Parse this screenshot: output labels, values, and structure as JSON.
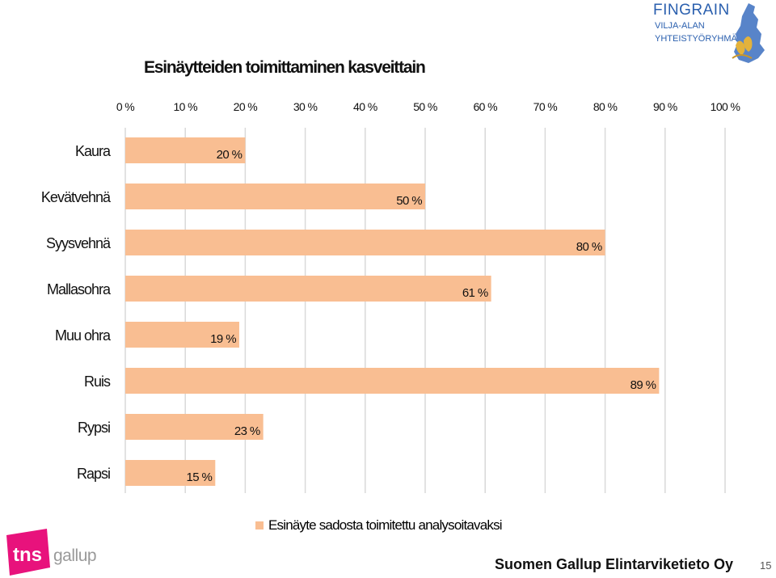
{
  "logo": {
    "brand": "FINGRAIN",
    "sub1": "VILJA-ALAN",
    "sub2": "YHTEISTYÖRYHMÄ"
  },
  "title": "Esinäytteiden toimittaminen kasveittain",
  "chart_data": {
    "type": "bar",
    "orientation": "horizontal",
    "title": "Esinäytteiden toimittaminen kasveittain",
    "categories": [
      "Kaura",
      "Kevätvehnä",
      "Syysvehnä",
      "Mallasohra",
      "Muu ohra",
      "Ruis",
      "Rypsi",
      "Rapsi"
    ],
    "series": [
      {
        "name": "Esinäyte sadosta toimitettu analysoitavaksi",
        "values": [
          20,
          50,
          80,
          61,
          19,
          89,
          23,
          15
        ]
      }
    ],
    "data_labels": [
      "20 %",
      "50 %",
      "80 %",
      "61 %",
      "19 %",
      "89 %",
      "23 %",
      "15 %"
    ],
    "x_ticks": [
      "0 %",
      "10 %",
      "20 %",
      "30 %",
      "40 %",
      "50 %",
      "60 %",
      "70 %",
      "80 %",
      "90 %",
      "100 %"
    ],
    "xlim": [
      0,
      100
    ],
    "x_axis_position": "top",
    "grid": true,
    "legend_position": "bottom",
    "bar_color": "#f9be92",
    "grid_color": "#d9d9d9"
  },
  "legend": {
    "label": "Esinäyte sadosta toimitettu analysoitavaksi"
  },
  "footer": {
    "company": "Suomen Gallup Elintarviketieto Oy",
    "page": "15"
  },
  "tns": {
    "mark": "tns",
    "gallup": "gallup"
  }
}
